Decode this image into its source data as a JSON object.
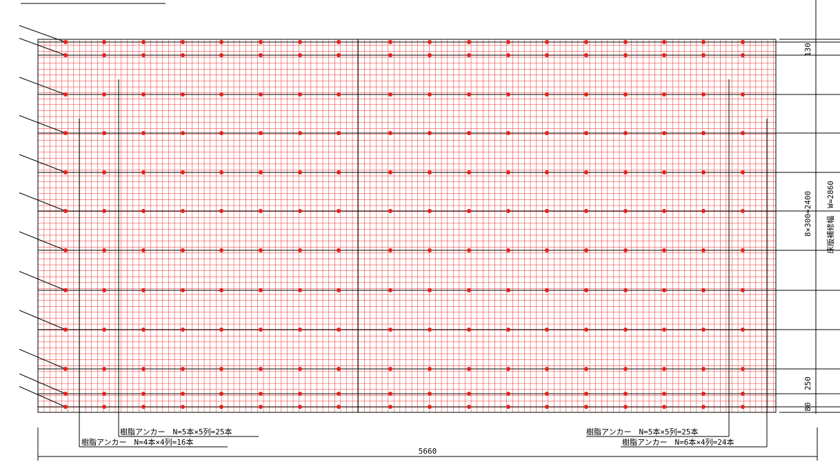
{
  "dimensions": {
    "top_offset": "130",
    "anchor_pitch": "8×300=2400",
    "bottom_offset": "250",
    "bottom_edge": "80",
    "repair_width": "床版補修幅　W=2860",
    "total_length": "5660"
  },
  "anchor_notes": [
    {
      "label": "樹脂アンカー　N=5本×5列=25本"
    },
    {
      "label": "樹脂アンカー　N=4本×4列=16本"
    },
    {
      "label": "樹脂アンカー　N=5本×5列=25本"
    },
    {
      "label": "樹脂アンカー　N=6本×4列=24本"
    }
  ]
}
